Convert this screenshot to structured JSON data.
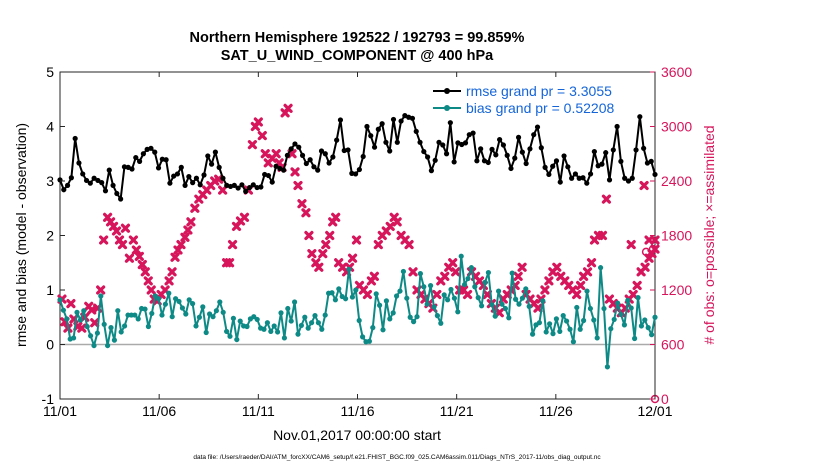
{
  "chart_data": {
    "type": "line",
    "title": "Northern Hemisphere 192522 / 192793 = 99.859%",
    "subtitle": "SAT_U_WIND_COMPONENT @ 400 hPa",
    "xlabel": "Nov.01,2017 00:00:00 start",
    "ylabel": "rmse and bias (model - observation)",
    "ylabel_right": "# of obs: o=possible; ×=assimilated",
    "footnote": "data file: /Users/raeder/DAI/ATM_forcXX/CAM6_setup/f.e21.FHIST_BGC.f09_025.CAM6assim.011/Diags_NTrS_2017-11/obs_diag_output.nc",
    "x_ticks": [
      "11/01",
      "11/06",
      "11/11",
      "11/16",
      "11/21",
      "11/26",
      "12/01"
    ],
    "x_range_days": [
      0,
      30
    ],
    "ylim": [
      -1,
      5
    ],
    "y_ticks": [
      "-1",
      "0",
      "1",
      "2",
      "3",
      "4",
      "5"
    ],
    "ylim_right": [
      0,
      3600
    ],
    "y_ticks_right": [
      "0",
      "600",
      "1200",
      "1800",
      "2400",
      "3000",
      "3600"
    ],
    "legend": {
      "placement": "top-right",
      "entries": [
        "rmse grand pr = 3.3055",
        "bias grand pr = 0.52208"
      ]
    },
    "colors": {
      "rmse": "#000000",
      "bias": "#0e8a86",
      "obs": "#d6155a",
      "zero_line": "#aaaaaa",
      "legend_text": "#1565d8"
    },
    "rmse": [
      3.02,
      2.84,
      2.92,
      3.06,
      3.78,
      3.33,
      3.13,
      3.01,
      2.96,
      3.05,
      3.01,
      2.97,
      2.82,
      3.2,
      2.92,
      2.77,
      2.67,
      3.26,
      3.25,
      3.22,
      3.43,
      3.36,
      3.5,
      3.58,
      3.6,
      3.53,
      3.24,
      3.4,
      3.39,
      2.96,
      3.09,
      3.13,
      3.25,
      2.92,
      3.08,
      2.97,
      3.05,
      2.93,
      3.11,
      3.46,
      3.31,
      3.53,
      3.25,
      3.05,
      2.92,
      2.9,
      2.92,
      2.87,
      2.93,
      2.81,
      2.88,
      2.93,
      2.88,
      2.89,
      3.12,
      3.1,
      2.98,
      3.27,
      3.23,
      3.2,
      3.47,
      3.59,
      3.68,
      3.62,
      3.47,
      3.32,
      3.39,
      3.26,
      3.2,
      3.55,
      3.5,
      3.33,
      3.44,
      3.75,
      4.12,
      3.56,
      3.57,
      3.14,
      3.13,
      3.21,
      3.45,
      4.0,
      3.83,
      3.62,
      3.95,
      4.05,
      3.71,
      3.55,
      4.13,
      3.71,
      4.1,
      4.2,
      4.17,
      4.15,
      3.91,
      3.71,
      3.54,
      3.44,
      3.19,
      3.38,
      3.71,
      3.66,
      3.5,
      4.07,
      3.35,
      3.7,
      3.67,
      3.7,
      3.85,
      3.88,
      3.37,
      3.59,
      3.37,
      3.34,
      3.58,
      3.48,
      3.76,
      3.66,
      3.47,
      3.23,
      3.42,
      3.8,
      3.53,
      3.32,
      3.59,
      3.85,
      3.99,
      3.61,
      3.25,
      3.12,
      3.27,
      3.37,
      2.98,
      3.46,
      3.26,
      3.05,
      3.13,
      3.05,
      3.06,
      2.96,
      3.13,
      3.54,
      3.28,
      3.31,
      3.52,
      3.02,
      3.57,
      4.0,
      3.36,
      3.05,
      3.0,
      3.05,
      3.57,
      4.18,
      3.6,
      3.33,
      3.36,
      3.12
    ],
    "bias": [
      0.82,
      0.63,
      0.47,
      0.1,
      0.12,
      0.59,
      0.45,
      0.62,
      0.33,
      0.16,
      -0.02,
      0.21,
      0.89,
      0.37,
      -0.02,
      0.31,
      0.08,
      0.62,
      0.23,
      0.34,
      0.54,
      0.54,
      0.54,
      0.47,
      0.66,
      0.65,
      0.33,
      0.57,
      0.89,
      0.84,
      0.54,
      0.74,
      0.94,
      0.51,
      0.84,
      0.79,
      0.67,
      0.56,
      0.82,
      0.75,
      0.34,
      0.5,
      0.69,
      0.22,
      0.56,
      0.51,
      0.62,
      0.78,
      0.59,
      0.24,
      0.15,
      0.48,
      0.09,
      0.43,
      0.34,
      0.33,
      0.47,
      0.51,
      0.46,
      0.3,
      0.28,
      0.4,
      0.24,
      0.34,
      0.23,
      0.58,
      0.12,
      0.66,
      0.43,
      0.78,
      0.19,
      0.35,
      0.5,
      0.3,
      0.4,
      0.53,
      0.4,
      0.28,
      0.54,
      0.94,
      0.95,
      0.82,
      1.02,
      0.88,
      0.84,
      1.38,
      0.87,
      1.0,
      0.44,
      0.14,
      0.05,
      0.06,
      0.31,
      0.93,
      0.72,
      0.27,
      0.8,
      0.47,
      0.58,
      0.89,
      0.98,
      1.34,
      0.85,
      0.5,
      0.42,
      0.51,
      1.3,
      1.06,
      0.74,
      1.08,
      0.69,
      0.53,
      0.39,
      0.91,
      0.82,
      1.01,
      0.85,
      0.6,
      1.62,
      1.1,
      1.21,
      1.41,
      1.06,
      0.86,
      0.71,
      1.14,
      1.32,
      0.73,
      0.52,
      0.98,
      0.74,
      0.66,
      0.49,
      1.31,
      0.83,
      0.74,
      0.85,
      1.02,
      0.7,
      0.19,
      0.36,
      0.4,
      0.8,
      0.23,
      0.38,
      0.2,
      0.47,
      0.24,
      0.53,
      0.43,
      0.28,
      0.05,
      0.68,
      0.28,
      0.44,
      0.98,
      0.66,
      0.45,
      0.12,
      1.41,
      0.66,
      -0.41,
      0.29,
      0.46,
      0.76,
      0.55,
      0.36,
      0.81,
      0.67,
      0.11,
      0.86,
      0.34,
      0.45,
      0.31,
      0.18,
      0.5
    ],
    "obs_assimilated": [
      [
        0.1,
        1100
      ],
      [
        0.25,
        850
      ],
      [
        0.4,
        780
      ],
      [
        0.55,
        1050
      ],
      [
        0.7,
        880
      ],
      [
        0.9,
        800
      ],
      [
        1.1,
        780
      ],
      [
        1.25,
        900
      ],
      [
        1.45,
        1020
      ],
      [
        1.6,
        980
      ],
      [
        1.75,
        840
      ],
      [
        1.9,
        1000
      ],
      [
        2.05,
        1200
      ],
      [
        2.2,
        1750
      ],
      [
        2.4,
        2000
      ],
      [
        2.55,
        1950
      ],
      [
        2.7,
        1900
      ],
      [
        2.85,
        1850
      ],
      [
        3.0,
        1750
      ],
      [
        3.15,
        1700
      ],
      [
        3.3,
        1880
      ],
      [
        3.5,
        1550
      ],
      [
        3.7,
        1750
      ],
      [
        3.85,
        1640
      ],
      [
        4.0,
        1570
      ],
      [
        4.15,
        1480
      ],
      [
        4.3,
        1400
      ],
      [
        4.45,
        1300
      ],
      [
        4.6,
        1200
      ],
      [
        4.75,
        1100
      ],
      [
        4.9,
        1080
      ],
      [
        5.1,
        1150
      ],
      [
        5.3,
        1200
      ],
      [
        5.5,
        1300
      ],
      [
        5.65,
        1400
      ],
      [
        5.8,
        1560
      ],
      [
        5.95,
        1640
      ],
      [
        6.1,
        1700
      ],
      [
        6.3,
        1780
      ],
      [
        6.45,
        1860
      ],
      [
        6.6,
        1950
      ],
      [
        6.8,
        2100
      ],
      [
        7.0,
        2200
      ],
      [
        7.2,
        2250
      ],
      [
        7.4,
        2300
      ],
      [
        7.6,
        2350
      ],
      [
        7.8,
        2400
      ],
      [
        8.0,
        2420
      ],
      [
        8.2,
        2300
      ],
      [
        8.4,
        1500
      ],
      [
        8.55,
        1500
      ],
      [
        8.7,
        1700
      ],
      [
        8.9,
        1900
      ],
      [
        9.1,
        1960
      ],
      [
        9.3,
        2000
      ],
      [
        9.5,
        2300
      ],
      [
        9.7,
        2800
      ],
      [
        9.85,
        3000
      ],
      [
        10.0,
        3050
      ],
      [
        10.2,
        2900
      ],
      [
        10.35,
        2700
      ],
      [
        10.5,
        2600
      ],
      [
        10.7,
        2650
      ],
      [
        10.9,
        2700
      ],
      [
        11.05,
        2600
      ],
      [
        11.2,
        2550
      ],
      [
        11.35,
        3150
      ],
      [
        11.5,
        3200
      ],
      [
        11.7,
        2700
      ],
      [
        11.85,
        2500
      ],
      [
        12.0,
        2350
      ],
      [
        12.2,
        2150
      ],
      [
        12.4,
        2050
      ],
      [
        12.55,
        1800
      ],
      [
        12.7,
        1600
      ],
      [
        12.9,
        1500
      ],
      [
        13.05,
        1450
      ],
      [
        13.25,
        1600
      ],
      [
        13.4,
        1700
      ],
      [
        13.6,
        1800
      ],
      [
        13.75,
        1950
      ],
      [
        13.9,
        2000
      ],
      [
        14.05,
        1500
      ],
      [
        14.25,
        1450
      ],
      [
        14.45,
        1400
      ],
      [
        14.6,
        1450
      ],
      [
        14.75,
        1550
      ],
      [
        14.95,
        1750
      ],
      [
        15.1,
        1250
      ],
      [
        15.3,
        1200
      ],
      [
        15.5,
        1150
      ],
      [
        15.7,
        1300
      ],
      [
        15.85,
        1350
      ],
      [
        16.05,
        1700
      ],
      [
        16.25,
        1800
      ],
      [
        16.45,
        1850
      ],
      [
        16.65,
        1900
      ],
      [
        16.85,
        2000
      ],
      [
        17.0,
        1950
      ],
      [
        17.2,
        1800
      ],
      [
        17.4,
        1750
      ],
      [
        17.6,
        1700
      ],
      [
        17.8,
        1400
      ],
      [
        18.0,
        1200
      ],
      [
        18.2,
        1150
      ],
      [
        18.4,
        1100
      ],
      [
        18.6,
        1050
      ],
      [
        18.8,
        1000
      ],
      [
        19.0,
        1150
      ],
      [
        19.2,
        1300
      ],
      [
        19.4,
        1350
      ],
      [
        19.6,
        1450
      ],
      [
        19.8,
        1500
      ],
      [
        19.95,
        1400
      ],
      [
        20.15,
        1200
      ],
      [
        20.35,
        1200
      ],
      [
        20.55,
        1150
      ],
      [
        20.75,
        1400
      ],
      [
        20.95,
        1350
      ],
      [
        21.15,
        1300
      ],
      [
        21.35,
        1250
      ],
      [
        21.55,
        1150
      ],
      [
        21.75,
        1050
      ],
      [
        21.95,
        1000
      ],
      [
        22.15,
        950
      ],
      [
        22.35,
        1100
      ],
      [
        22.55,
        1150
      ],
      [
        22.75,
        1200
      ],
      [
        22.95,
        1250
      ],
      [
        23.1,
        1350
      ],
      [
        23.3,
        1450
      ],
      [
        23.5,
        1150
      ],
      [
        23.7,
        1100
      ],
      [
        23.9,
        1050
      ],
      [
        24.1,
        1000
      ],
      [
        24.25,
        1100
      ],
      [
        24.45,
        1200
      ],
      [
        24.65,
        1300
      ],
      [
        24.85,
        1400
      ],
      [
        25.05,
        1450
      ],
      [
        25.25,
        1350
      ],
      [
        25.45,
        1300
      ],
      [
        25.65,
        1250
      ],
      [
        25.85,
        1200
      ],
      [
        26.05,
        1150
      ],
      [
        26.25,
        1250
      ],
      [
        26.4,
        1350
      ],
      [
        26.6,
        1400
      ],
      [
        26.8,
        1500
      ],
      [
        26.95,
        1750
      ],
      [
        27.15,
        1800
      ],
      [
        27.35,
        1800
      ],
      [
        27.55,
        2200
      ],
      [
        27.7,
        1100
      ],
      [
        27.9,
        1050
      ],
      [
        28.1,
        1000
      ],
      [
        28.3,
        950
      ],
      [
        28.5,
        1000
      ],
      [
        28.7,
        1100
      ],
      [
        28.9,
        1150
      ],
      [
        29.1,
        1250
      ],
      [
        29.3,
        1400
      ],
      [
        29.5,
        1450
      ],
      [
        29.7,
        1550
      ],
      [
        29.85,
        1600
      ],
      [
        30.0,
        1650
      ],
      [
        28.8,
        1700
      ],
      [
        29.45,
        2350
      ],
      [
        29.7,
        1750
      ],
      [
        30.0,
        1750
      ]
    ],
    "obs_possible": [
      [
        30.0,
        0
      ],
      [
        29.9,
        1650
      ],
      [
        29.55,
        1620
      ]
    ]
  }
}
